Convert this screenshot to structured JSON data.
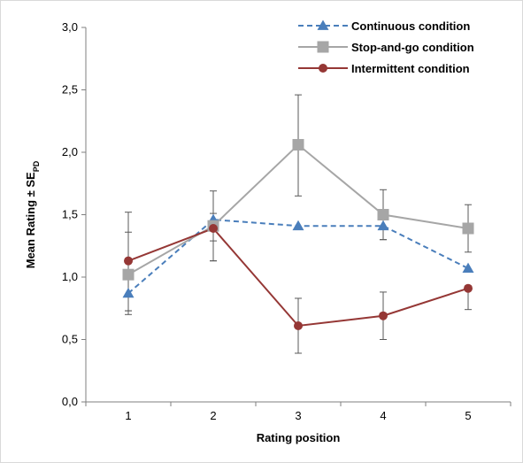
{
  "chart_data": {
    "type": "line",
    "xlabel": "Rating position",
    "ylabel": "Mean Rating ± SE",
    "ylabel_sub": "PD",
    "x": [
      1,
      2,
      3,
      4,
      5
    ],
    "xlim": [
      0.5,
      5.5
    ],
    "ylim": [
      0,
      3
    ],
    "yticks": [
      "0,0",
      "0,5",
      "1,0",
      "1,5",
      "2,0",
      "2,5",
      "3,0"
    ],
    "ytick_values": [
      0,
      0.5,
      1,
      1.5,
      2,
      2.5,
      3
    ],
    "xticks": [
      "1",
      "2",
      "3",
      "4",
      "5"
    ],
    "grid": false,
    "legend_position": "top-right",
    "series": [
      {
        "name": "Continuous condition",
        "values": [
          0.87,
          1.46,
          1.41,
          1.41,
          1.07
        ],
        "err_low": [
          0.17,
          0.17,
          0.0,
          0.11,
          0.0
        ],
        "err_high": [
          0.16,
          0.05,
          0.0,
          0.0,
          0.0
        ],
        "color": "#4a7ebb",
        "line": "dashed",
        "marker": "triangle"
      },
      {
        "name": "Stop-and-go condition",
        "values": [
          1.02,
          1.41,
          2.06,
          1.5,
          1.39
        ],
        "err_low": [
          0.29,
          0.28,
          0.41,
          0.2,
          0.19
        ],
        "err_high": [
          0.5,
          0.28,
          0.4,
          0.2,
          0.19
        ],
        "color": "#a6a6a6",
        "line": "solid",
        "marker": "square"
      },
      {
        "name": "Intermittent condition",
        "values": [
          1.13,
          1.39,
          0.61,
          0.69,
          0.91
        ],
        "err_low": [
          0.4,
          0.26,
          0.22,
          0.19,
          0.17
        ],
        "err_high": [
          0.23,
          0.0,
          0.22,
          0.19,
          0.0
        ],
        "color": "#953735",
        "line": "solid",
        "marker": "circle"
      }
    ]
  }
}
